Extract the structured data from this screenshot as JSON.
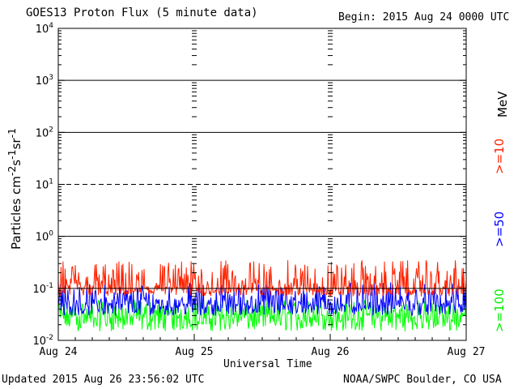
{
  "chart_data": {
    "type": "line",
    "title": "GOES13 Proton Flux (5 minute data)",
    "begin_label": "Begin: 2015 Aug 24 0000 UTC",
    "xlabel": "Universal Time",
    "ylabel": "Particles cm-2s-1sr-1",
    "yscale": "log",
    "ylim": [
      0.01,
      10000
    ],
    "ytick_labels": [
      "10-2",
      "10-1",
      "100",
      "101",
      "102",
      "103",
      "104"
    ],
    "x_tick_labels": [
      "Aug 24",
      "Aug 25",
      "Aug 26",
      "Aug 27"
    ],
    "xlim": [
      "2015-08-24 00:00",
      "2015-08-27 00:00"
    ],
    "grid": true,
    "legend": "right side, vertical",
    "unit_label": "MeV",
    "series": [
      {
        "name": ">=10",
        "color": "#ff2200",
        "baseline": 0.1,
        "low": 0.07,
        "high": 0.35
      },
      {
        "name": ">=50",
        "color": "#0000ff",
        "baseline": 0.05,
        "low": 0.03,
        "high": 0.13
      },
      {
        "name": ">=100",
        "color": "#00ff00",
        "baseline": 0.03,
        "low": 0.015,
        "high": 0.06
      }
    ]
  },
  "footer": {
    "updated": "Updated 2015 Aug 26 23:56:02 UTC",
    "source": "NOAA/SWPC Boulder, CO USA"
  }
}
